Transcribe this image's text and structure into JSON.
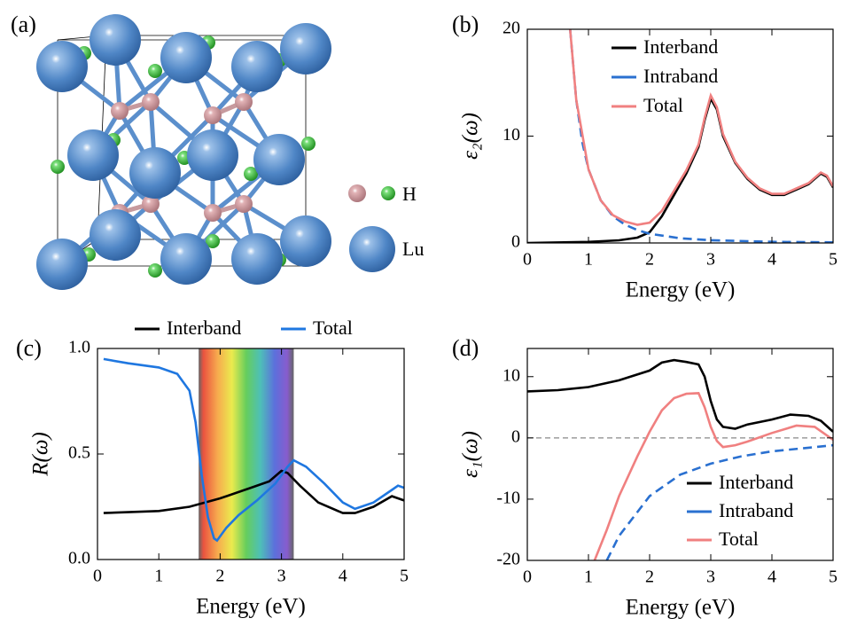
{
  "structure": {
    "panel_label": "(a)",
    "legend": [
      "H",
      "Lu"
    ]
  },
  "chart_data": [
    {
      "type": "line",
      "panel_label": "(b)",
      "xlabel": "Energy (eV)",
      "ylabel": "ε₂(ω)",
      "xlim": [
        0,
        5
      ],
      "ylim": [
        0,
        20
      ],
      "xticks": [
        0,
        1,
        2,
        3,
        4,
        5
      ],
      "yticks": [
        0,
        10,
        20
      ],
      "legend": "upper right",
      "series": [
        {
          "name": "Interband",
          "color": "#000000",
          "dash": false,
          "x": [
            0,
            0.5,
            1.0,
            1.5,
            1.8,
            2.0,
            2.2,
            2.4,
            2.6,
            2.8,
            2.9,
            3.0,
            3.1,
            3.2,
            3.4,
            3.6,
            3.8,
            4.0,
            4.2,
            4.4,
            4.6,
            4.8,
            4.9,
            5.0
          ],
          "values": [
            0,
            0.05,
            0.1,
            0.25,
            0.5,
            1.0,
            2.5,
            4.5,
            6.5,
            9.0,
            11.5,
            13.5,
            12.5,
            10.0,
            7.5,
            6.0,
            5.0,
            4.5,
            4.5,
            5.0,
            5.5,
            6.5,
            6.2,
            5.2
          ]
        },
        {
          "name": "Intraband",
          "color": "#2a70d0",
          "dash": true,
          "x": [
            0.7,
            0.8,
            0.9,
            1.0,
            1.2,
            1.4,
            1.6,
            1.8,
            2.0,
            2.5,
            3.0,
            4.0,
            5.0
          ],
          "values": [
            20,
            13.4,
            9.4,
            6.9,
            4.0,
            2.5,
            1.7,
            1.2,
            0.86,
            0.44,
            0.26,
            0.11,
            0.06
          ]
        },
        {
          "name": "Total",
          "color": "#f08080",
          "dash": false,
          "x": [
            0.7,
            0.8,
            1.0,
            1.2,
            1.4,
            1.6,
            1.8,
            1.9,
            2.0,
            2.2,
            2.4,
            2.6,
            2.8,
            2.9,
            3.0,
            3.1,
            3.2,
            3.4,
            3.6,
            3.8,
            4.0,
            4.2,
            4.4,
            4.6,
            4.8,
            4.9,
            5.0
          ],
          "values": [
            20,
            13.4,
            6.9,
            4.0,
            2.6,
            2.0,
            1.7,
            1.8,
            1.9,
            3.0,
            4.9,
            6.8,
            9.2,
            11.7,
            13.8,
            12.7,
            10.2,
            7.6,
            6.1,
            5.1,
            4.6,
            4.6,
            5.1,
            5.6,
            6.6,
            6.3,
            5.3
          ]
        }
      ]
    },
    {
      "type": "line",
      "panel_label": "(c)",
      "xlabel": "Energy (eV)",
      "ylabel": "R(ω)",
      "xlim": [
        0,
        5
      ],
      "ylim": [
        0,
        1
      ],
      "xticks": [
        0,
        1,
        2,
        3,
        4,
        5
      ],
      "yticks": [
        {
          "value": 0,
          "label": "0.0"
        },
        0.5,
        {
          "value": 1,
          "label": "1.0"
        }
      ],
      "legend": "above",
      "shaded_region": [
        1.65,
        3.2
      ],
      "series": [
        {
          "name": "Interband",
          "color": "#000000",
          "dash": false,
          "x": [
            0.1,
            1.0,
            1.5,
            2.0,
            2.5,
            2.8,
            3.0,
            3.1,
            3.3,
            3.6,
            4.0,
            4.2,
            4.5,
            4.8,
            5.0
          ],
          "values": [
            0.22,
            0.23,
            0.25,
            0.29,
            0.34,
            0.37,
            0.42,
            0.41,
            0.35,
            0.27,
            0.22,
            0.22,
            0.25,
            0.3,
            0.28
          ]
        },
        {
          "name": "Total",
          "color": "#1f77e0",
          "dash": false,
          "x": [
            0.1,
            0.5,
            1.0,
            1.3,
            1.5,
            1.6,
            1.7,
            1.8,
            1.9,
            1.95,
            2.1,
            2.3,
            2.6,
            2.9,
            3.1,
            3.2,
            3.4,
            3.7,
            4.0,
            4.2,
            4.5,
            4.8,
            4.9,
            5.0
          ],
          "values": [
            0.95,
            0.93,
            0.91,
            0.88,
            0.8,
            0.65,
            0.4,
            0.2,
            0.1,
            0.09,
            0.15,
            0.21,
            0.28,
            0.36,
            0.44,
            0.47,
            0.44,
            0.36,
            0.27,
            0.24,
            0.27,
            0.33,
            0.35,
            0.34
          ]
        }
      ]
    },
    {
      "type": "line",
      "panel_label": "(d)",
      "xlabel": "Energy (eV)",
      "ylabel": "ε₁(ω)",
      "xlim": [
        0,
        5
      ],
      "ylim": [
        -20,
        14.6
      ],
      "xticks": [
        0,
        1,
        2,
        3,
        4,
        5
      ],
      "yticks": [
        -20,
        -10,
        0,
        10
      ],
      "legend": "lower right",
      "zero_line": true,
      "series": [
        {
          "name": "Interband",
          "color": "#000000",
          "dash": false,
          "x": [
            0,
            0.5,
            1.0,
            1.5,
            2.0,
            2.2,
            2.4,
            2.6,
            2.8,
            2.9,
            3.0,
            3.1,
            3.2,
            3.4,
            3.6,
            4.0,
            4.3,
            4.6,
            4.8,
            5.0
          ],
          "values": [
            7.6,
            7.8,
            8.3,
            9.4,
            11.0,
            12.3,
            12.7,
            12.4,
            12.0,
            10.0,
            6.0,
            3.0,
            1.8,
            1.5,
            2.2,
            3.0,
            3.8,
            3.6,
            2.8,
            1.0
          ]
        },
        {
          "name": "Intraband",
          "color": "#2a70d0",
          "dash": true,
          "x": [
            1.3,
            1.5,
            2.0,
            2.5,
            3.0,
            3.5,
            4.0,
            4.5,
            5.0
          ],
          "values": [
            -20,
            -16,
            -9.5,
            -6.0,
            -4.2,
            -3.0,
            -2.2,
            -1.7,
            -1.2
          ]
        },
        {
          "name": "Total",
          "color": "#f08080",
          "dash": false,
          "x": [
            1.1,
            1.3,
            1.5,
            1.8,
            2.0,
            2.2,
            2.4,
            2.6,
            2.8,
            2.9,
            3.0,
            3.1,
            3.2,
            3.4,
            3.6,
            4.0,
            4.4,
            4.7,
            5.0
          ],
          "values": [
            -20,
            -15,
            -9.5,
            -3.0,
            1.0,
            4.5,
            6.5,
            7.2,
            7.3,
            5.0,
            1.8,
            -0.5,
            -1.5,
            -1.2,
            -0.6,
            0.8,
            2.0,
            1.8,
            -0.3
          ]
        }
      ]
    }
  ]
}
